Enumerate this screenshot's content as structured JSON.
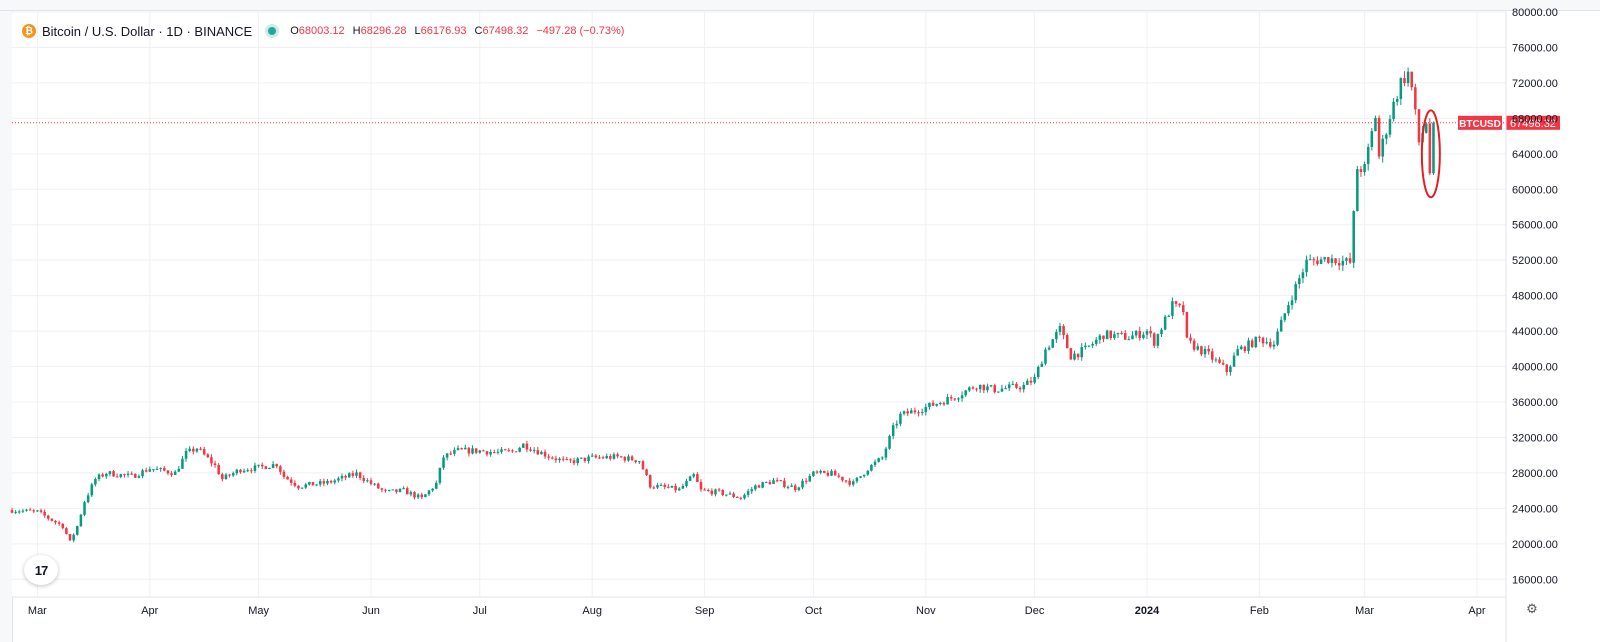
{
  "legend": {
    "symbol_icon": "bitcoin-icon",
    "title": "Bitcoin / U.S. Dollar · 1D · BINANCE",
    "open_label": "O",
    "open": "68003.12",
    "high_label": "H",
    "high": "68296.28",
    "low_label": "L",
    "low": "66176.93",
    "close_label": "C",
    "close": "67498.32",
    "change": "−497.28 (−0.73%)"
  },
  "price_tag": {
    "symbol": "BTCUSD",
    "value": "67498.32",
    "price": 67498.32
  },
  "logo": {
    "icon": "tradingview-logo-icon",
    "text": "17"
  },
  "colors": {
    "up": "#089981",
    "down": "#f23645",
    "grid": "#eef0f3",
    "price_line": "#f23645",
    "annotation": "#e02020"
  },
  "chart_data": {
    "type": "candlestick",
    "symbol": "Bitcoin / U.S. Dollar",
    "interval": "1D",
    "exchange": "BINANCE",
    "ylim": [
      14000,
      80000
    ],
    "y_ticks": [
      "80000.00",
      "76000.00",
      "72000.00",
      "68000.00",
      "64000.00",
      "60000.00",
      "56000.00",
      "52000.00",
      "48000.00",
      "44000.00",
      "40000.00",
      "36000.00",
      "32000.00",
      "28000.00",
      "24000.00",
      "20000.00",
      "16000.00"
    ],
    "x_ticks": [
      {
        "label": "Mar",
        "date": "2023-03-01"
      },
      {
        "label": "Apr",
        "date": "2023-04-01"
      },
      {
        "label": "May",
        "date": "2023-05-01"
      },
      {
        "label": "Jun",
        "date": "2023-06-01"
      },
      {
        "label": "Jul",
        "date": "2023-07-01"
      },
      {
        "label": "Aug",
        "date": "2023-08-01"
      },
      {
        "label": "Sep",
        "date": "2023-09-01"
      },
      {
        "label": "Oct",
        "date": "2023-10-01"
      },
      {
        "label": "Nov",
        "date": "2023-11-01"
      },
      {
        "label": "Dec",
        "date": "2023-12-01"
      },
      {
        "label": "2024",
        "date": "2024-01-01",
        "bold": true
      },
      {
        "label": "Feb",
        "date": "2024-02-01"
      },
      {
        "label": "Mar",
        "date": "2024-03-01"
      },
      {
        "label": "Apr",
        "date": "2024-04-01"
      }
    ],
    "x_range": [
      "2023-02-22",
      "2024-04-09"
    ],
    "close_series": [
      [
        "2023-02-22",
        23800
      ],
      [
        "2023-03-01",
        23600
      ],
      [
        "2023-03-08",
        22000
      ],
      [
        "2023-03-10",
        20200
      ],
      [
        "2023-03-12",
        22000
      ],
      [
        "2023-03-14",
        24800
      ],
      [
        "2023-03-17",
        27300
      ],
      [
        "2023-03-20",
        28000
      ],
      [
        "2023-03-27",
        27600
      ],
      [
        "2023-04-01",
        28500
      ],
      [
        "2023-04-08",
        28000
      ],
      [
        "2023-04-11",
        30200
      ],
      [
        "2023-04-14",
        30800
      ],
      [
        "2023-04-19",
        28800
      ],
      [
        "2023-04-21",
        27300
      ],
      [
        "2023-04-26",
        28400
      ],
      [
        "2023-05-01",
        28600
      ],
      [
        "2023-05-06",
        29000
      ],
      [
        "2023-05-08",
        27600
      ],
      [
        "2023-05-12",
        26500
      ],
      [
        "2023-05-20",
        26900
      ],
      [
        "2023-05-28",
        27900
      ],
      [
        "2023-06-01",
        26800
      ],
      [
        "2023-06-05",
        25800
      ],
      [
        "2023-06-10",
        26000
      ],
      [
        "2023-06-15",
        25100
      ],
      [
        "2023-06-19",
        26800
      ],
      [
        "2023-06-21",
        29800
      ],
      [
        "2023-06-25",
        30500
      ],
      [
        "2023-07-01",
        30500
      ],
      [
        "2023-07-06",
        30300
      ],
      [
        "2023-07-10",
        30400
      ],
      [
        "2023-07-13",
        31200
      ],
      [
        "2023-07-20",
        29900
      ],
      [
        "2023-07-25",
        29200
      ],
      [
        "2023-08-01",
        29700
      ],
      [
        "2023-08-08",
        29800
      ],
      [
        "2023-08-14",
        29400
      ],
      [
        "2023-08-17",
        26600
      ],
      [
        "2023-08-25",
        26100
      ],
      [
        "2023-08-29",
        27700
      ],
      [
        "2023-08-31",
        26000
      ],
      [
        "2023-09-05",
        25800
      ],
      [
        "2023-09-11",
        25200
      ],
      [
        "2023-09-15",
        26500
      ],
      [
        "2023-09-20",
        27100
      ],
      [
        "2023-09-26",
        26300
      ],
      [
        "2023-10-01",
        27900
      ],
      [
        "2023-10-06",
        27900
      ],
      [
        "2023-10-12",
        26800
      ],
      [
        "2023-10-16",
        28500
      ],
      [
        "2023-10-20",
        29700
      ],
      [
        "2023-10-23",
        33000
      ],
      [
        "2023-10-25",
        34500
      ],
      [
        "2023-11-01",
        35400
      ],
      [
        "2023-11-09",
        36600
      ],
      [
        "2023-11-15",
        37900
      ],
      [
        "2023-11-20",
        37400
      ],
      [
        "2023-11-28",
        37800
      ],
      [
        "2023-12-01",
        38600
      ],
      [
        "2023-12-04",
        41900
      ],
      [
        "2023-12-08",
        44200
      ],
      [
        "2023-12-11",
        41200
      ],
      [
        "2023-12-15",
        41900
      ],
      [
        "2023-12-20",
        43600
      ],
      [
        "2023-12-27",
        43300
      ],
      [
        "2024-01-01",
        44000
      ],
      [
        "2024-01-03",
        42800
      ],
      [
        "2024-01-08",
        46900
      ],
      [
        "2024-01-11",
        46300
      ],
      [
        "2024-01-12",
        42800
      ],
      [
        "2024-01-18",
        41300
      ],
      [
        "2024-01-23",
        39500
      ],
      [
        "2024-01-26",
        41800
      ],
      [
        "2024-02-01",
        43100
      ],
      [
        "2024-02-05",
        42600
      ],
      [
        "2024-02-09",
        47100
      ],
      [
        "2024-02-14",
        51800
      ],
      [
        "2024-02-20",
        52200
      ],
      [
        "2024-02-26",
        51700
      ],
      [
        "2024-02-28",
        62400
      ],
      [
        "2024-03-01",
        62300
      ],
      [
        "2024-03-04",
        68300
      ],
      [
        "2024-03-05",
        63700
      ],
      [
        "2024-03-08",
        68300
      ],
      [
        "2024-03-11",
        72100
      ],
      [
        "2024-03-13",
        73100
      ],
      [
        "2024-03-14",
        71400
      ],
      [
        "2024-03-16",
        65300
      ],
      [
        "2024-03-18",
        67600
      ],
      [
        "2024-03-19",
        61900
      ],
      [
        "2024-03-20",
        67498.32
      ]
    ],
    "annotation": {
      "shape": "ellipse",
      "date": "2024-03-19",
      "price_from": 60000,
      "price_to": 68000
    }
  }
}
